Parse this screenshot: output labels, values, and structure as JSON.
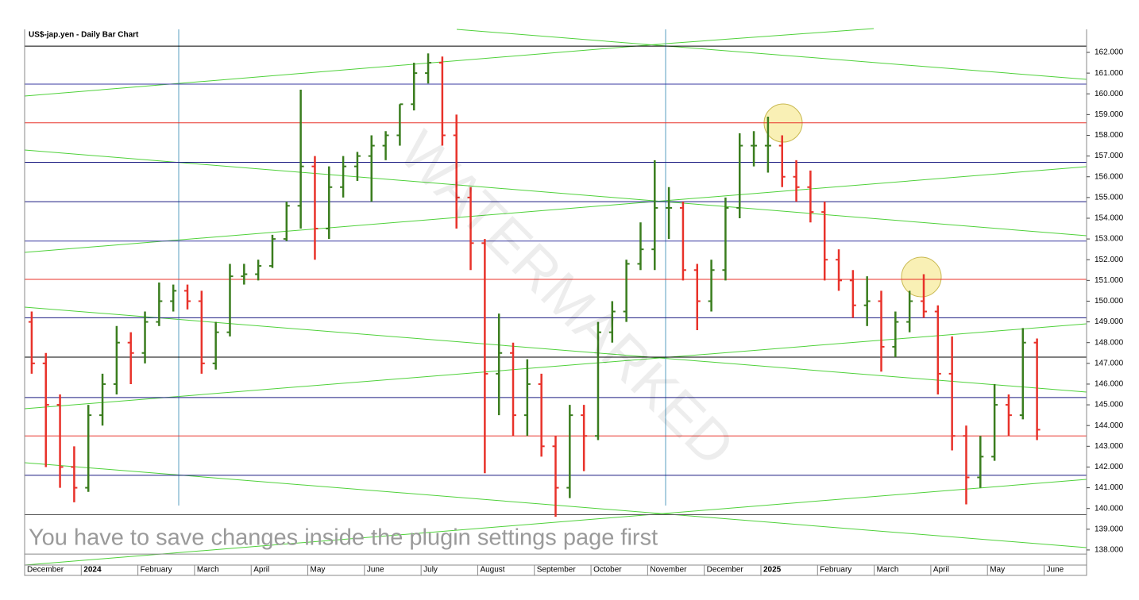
{
  "chart_data": {
    "type": "ohlc",
    "title": "US$-jap.yen - Daily Bar Chart",
    "watermark": "WATERMARKED",
    "notice": "You have to save changes inside the plugin settings page first",
    "categories": [
      "December",
      null,
      null,
      null,
      "2024",
      null,
      null,
      null,
      "February",
      null,
      null,
      null,
      "March",
      null,
      null,
      null,
      "April",
      null,
      null,
      null,
      "May",
      null,
      null,
      null,
      "June",
      null,
      null,
      null,
      "July",
      null,
      null,
      null,
      "August",
      null,
      null,
      null,
      "September",
      null,
      null,
      null,
      "October",
      null,
      null,
      null,
      "November",
      null,
      null,
      null,
      "December",
      null,
      null,
      null,
      "2025",
      null,
      null,
      null,
      "February",
      null,
      null,
      null,
      "March",
      null,
      null,
      null,
      "April",
      null,
      null,
      null,
      "May",
      null,
      null,
      null,
      "June",
      null,
      null
    ],
    "open": [
      149,
      147,
      145,
      142,
      141,
      144.5,
      146,
      148,
      147.5,
      149,
      150,
      150.5,
      150,
      147,
      148.5,
      151.2,
      151.3,
      151.7,
      153,
      154.6,
      156.5,
      153.5,
      155.5,
      156.5,
      157,
      157.5,
      158,
      159.5,
      161,
      161.5,
      158,
      155,
      152.8,
      146.5,
      147.5,
      144.5,
      146,
      143,
      141,
      144.5,
      143.5,
      148.5,
      149.5,
      151.8,
      152.5,
      154.5,
      154.5,
      151.5,
      150,
      151.5,
      154.5,
      157.5,
      157.5,
      157.5,
      156,
      155.5,
      154.3,
      152,
      151,
      149.8,
      150,
      147.8,
      149,
      150,
      149.5,
      146.5,
      143.5,
      141.5,
      142.5,
      145,
      144.5,
      148,
      null,
      null,
      null
    ],
    "high": [
      149.5,
      147.5,
      145.5,
      143,
      145,
      146.5,
      148.8,
      148.5,
      149.5,
      150.9,
      150.8,
      150.8,
      150.5,
      149,
      151.8,
      151.8,
      152,
      153.2,
      154.8,
      160.2,
      157,
      156.5,
      157,
      157.2,
      158,
      158.2,
      159.5,
      161.5,
      161.95,
      161.8,
      159,
      155.5,
      153,
      149.4,
      148,
      147.2,
      146.5,
      143.5,
      145,
      145,
      149,
      150,
      152,
      153.8,
      156.8,
      155.5,
      154.8,
      151.8,
      152,
      155,
      158.1,
      158.2,
      158.9,
      158,
      156.8,
      156.3,
      154.8,
      152.5,
      151.5,
      151.2,
      150.5,
      149.5,
      150.5,
      151.3,
      149.8,
      148.3,
      144,
      143.5,
      146,
      145.5,
      148.7,
      148.2,
      null,
      null,
      null
    ],
    "low": [
      146.5,
      142,
      141,
      140.3,
      140.8,
      144,
      145.5,
      146,
      147,
      148.8,
      149.5,
      149.6,
      146.5,
      146.7,
      148.3,
      150.8,
      151,
      151.6,
      152.9,
      153.5,
      152,
      153,
      155,
      155.8,
      154.8,
      156.8,
      157.5,
      159.2,
      160.5,
      157.5,
      153.5,
      151.5,
      141.7,
      144.5,
      143.5,
      143.5,
      142.5,
      139.6,
      140.5,
      141.8,
      143.3,
      148,
      149,
      151.5,
      151.5,
      153,
      151,
      148.6,
      149.5,
      151,
      154,
      156.5,
      156.2,
      155.5,
      154.8,
      153.8,
      151,
      150.5,
      149.2,
      148.8,
      146.6,
      147.3,
      148.5,
      149.2,
      145.5,
      142.8,
      140.2,
      141,
      142.3,
      143.5,
      144.3,
      143.3,
      null,
      null,
      null
    ],
    "close": [
      147,
      145,
      142,
      141,
      144.5,
      146,
      148,
      147.5,
      149,
      150,
      150.5,
      150,
      147,
      148.5,
      151.2,
      151.3,
      151.7,
      153,
      154.6,
      156.5,
      153.5,
      155.5,
      156.5,
      157,
      157.5,
      158,
      159.5,
      161,
      161.5,
      158,
      155,
      152.8,
      146.5,
      147.5,
      144.5,
      146,
      143,
      141,
      144.5,
      143.5,
      148.5,
      149.5,
      151.8,
      152.5,
      154.5,
      154.5,
      151.5,
      150,
      151.5,
      154.5,
      157.5,
      157.5,
      157.5,
      156,
      155.5,
      154.3,
      152,
      151,
      149.8,
      150,
      147.8,
      149,
      150,
      149.5,
      146.5,
      143.5,
      141.5,
      142.5,
      145,
      144.5,
      148,
      143.8,
      null,
      null,
      null
    ],
    "up_color": "#3a7d1e",
    "down_color": "#e8322a",
    "levels": [
      {
        "value": 162.3,
        "color": "#000000"
      },
      {
        "value": 160.47,
        "color": "#3a3aa0"
      },
      {
        "value": 158.6,
        "color": "#e8322a"
      },
      {
        "value": 156.7,
        "color": "#1a1a80"
      },
      {
        "value": 154.8,
        "color": "#1a1a80"
      },
      {
        "value": 152.9,
        "color": "#3a3aa0"
      },
      {
        "value": 151.05,
        "color": "#e8322a"
      },
      {
        "value": 149.2,
        "color": "#1a1a80"
      },
      {
        "value": 147.3,
        "color": "#000000"
      },
      {
        "value": 145.35,
        "color": "#1a1a80"
      },
      {
        "value": 143.5,
        "color": "#e8322a"
      },
      {
        "value": 141.6,
        "color": "#1a1a80"
      },
      {
        "value": 139.7,
        "color": "#555555"
      },
      {
        "value": 137.8,
        "color": "#888888"
      }
    ],
    "ylim": [
      137.27,
      163.11
    ],
    "yticks": [
      {
        "value": 138,
        "label": "138.000"
      },
      {
        "value": 139,
        "label": "139.000"
      },
      {
        "value": 140,
        "label": "140.000"
      },
      {
        "value": 141,
        "label": "141.000"
      },
      {
        "value": 142,
        "label": "142.000"
      },
      {
        "value": 143,
        "label": "143.000"
      },
      {
        "value": 144,
        "label": "144.000"
      },
      {
        "value": 145,
        "label": "145.000"
      },
      {
        "value": 146,
        "label": "146.000"
      },
      {
        "value": 147,
        "label": "147.000"
      },
      {
        "value": 148,
        "label": "148.000"
      },
      {
        "value": 149,
        "label": "149.000"
      },
      {
        "value": 150,
        "label": "150.000"
      },
      {
        "value": 151,
        "label": "151.000"
      },
      {
        "value": 152,
        "label": "152.000"
      },
      {
        "value": 153,
        "label": "153.000"
      },
      {
        "value": 154,
        "label": "154.000"
      },
      {
        "value": 155,
        "label": "155.000"
      },
      {
        "value": 156,
        "label": "156.000"
      },
      {
        "value": 157,
        "label": "157.000"
      },
      {
        "value": 158,
        "label": "158.000"
      },
      {
        "value": 159,
        "label": "159.000"
      },
      {
        "value": 160,
        "label": "160.000"
      },
      {
        "value": 161,
        "label": "161.000"
      },
      {
        "value": 162,
        "label": "162.000"
      }
    ]
  }
}
